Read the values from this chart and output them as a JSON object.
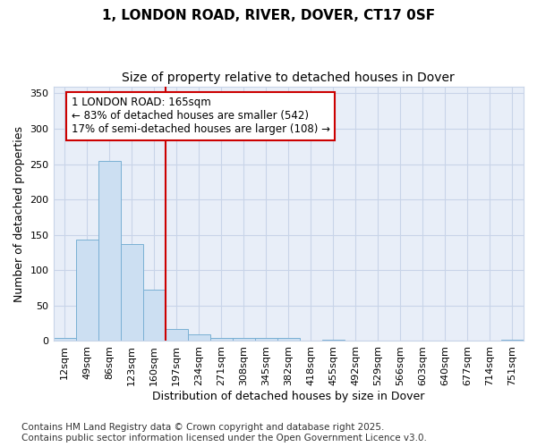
{
  "title_line1": "1, LONDON ROAD, RIVER, DOVER, CT17 0SF",
  "title_line2": "Size of property relative to detached houses in Dover",
  "xlabel": "Distribution of detached houses by size in Dover",
  "ylabel": "Number of detached properties",
  "categories": [
    "12sqm",
    "49sqm",
    "86sqm",
    "123sqm",
    "160sqm",
    "197sqm",
    "234sqm",
    "271sqm",
    "308sqm",
    "345sqm",
    "382sqm",
    "418sqm",
    "455sqm",
    "492sqm",
    "529sqm",
    "566sqm",
    "603sqm",
    "640sqm",
    "677sqm",
    "714sqm",
    "751sqm"
  ],
  "values": [
    4,
    143,
    255,
    137,
    73,
    17,
    10,
    5,
    5,
    5,
    4,
    0,
    2,
    0,
    0,
    0,
    0,
    0,
    0,
    0,
    2
  ],
  "bar_color": "#ccdff2",
  "bar_edge_color": "#7ab0d4",
  "red_line_index": 4,
  "annotation_line1": "1 LONDON ROAD: 165sqm",
  "annotation_line2": "← 83% of detached houses are smaller (542)",
  "annotation_line3": "17% of semi-detached houses are larger (108) →",
  "annotation_box_color": "#ffffff",
  "annotation_box_edge": "#cc0000",
  "red_line_color": "#cc0000",
  "ylim": [
    0,
    360
  ],
  "yticks": [
    0,
    50,
    100,
    150,
    200,
    250,
    300,
    350
  ],
  "fig_bg_color": "#ffffff",
  "plot_bg_color": "#e8eef8",
  "grid_color": "#c8d4e8",
  "footer_line1": "Contains HM Land Registry data © Crown copyright and database right 2025.",
  "footer_line2": "Contains public sector information licensed under the Open Government Licence v3.0.",
  "title_fontsize": 11,
  "subtitle_fontsize": 10,
  "axis_label_fontsize": 9,
  "tick_fontsize": 8,
  "annotation_fontsize": 8.5,
  "footer_fontsize": 7.5
}
